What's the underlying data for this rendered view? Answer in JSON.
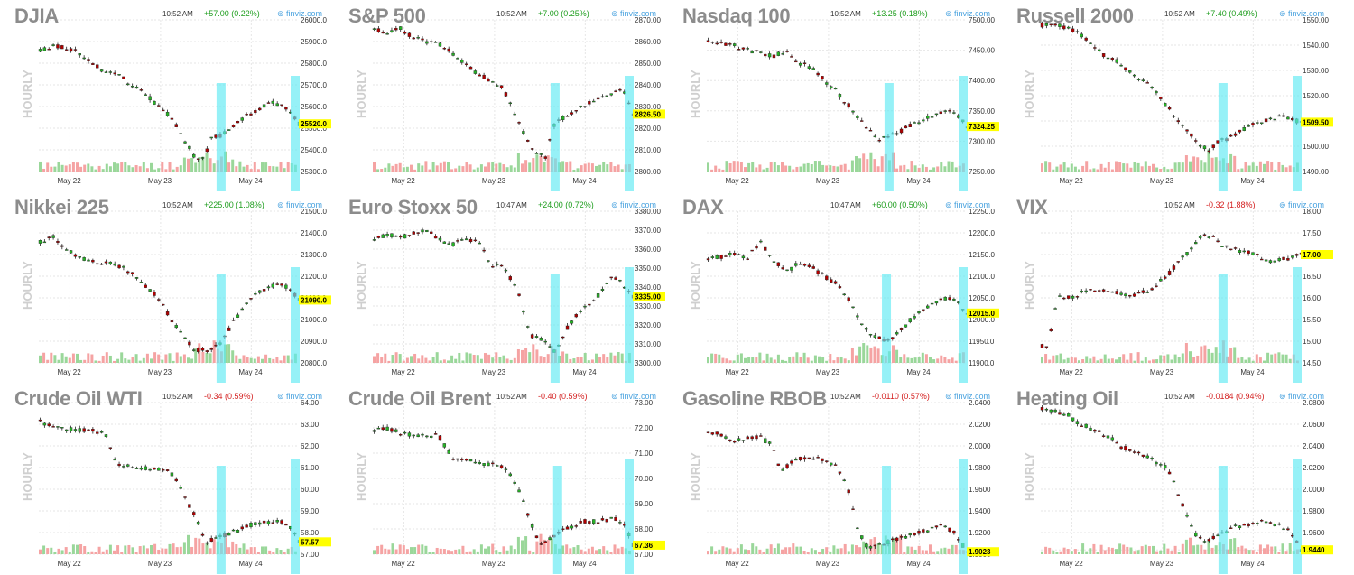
{
  "colors": {
    "up": "#26b226",
    "down": "#b00000",
    "vol_up": "#9ad79a",
    "vol_down": "#f5a3a3",
    "highlight": "#5ee9f2",
    "last_label": "#ffff00",
    "grid": "#e6e6e6",
    "pos": "#1f9e1f",
    "neg": "#d42020"
  },
  "common": {
    "hourly_label": "HOURLY",
    "brand": "⊚ finviz.com",
    "x_labels": [
      "May 22",
      "May 23",
      "May 24"
    ]
  },
  "chart_data": [
    {
      "type": "line",
      "title": "DJIA",
      "time": "10:52 AM",
      "change": "+57.00 (0.22%)",
      "change_sign": "pos",
      "ylim": [
        25300,
        26000
      ],
      "yticks": [
        "25300.0",
        "25400.0",
        "25500.0",
        "25600.0",
        "25700.0",
        "25800.0",
        "25900.0",
        "26000.0"
      ],
      "last": "25520.0",
      "path": [
        [
          0,
          25860
        ],
        [
          0.05,
          25880
        ],
        [
          0.1,
          25870
        ],
        [
          0.15,
          25850
        ],
        [
          0.2,
          25800
        ],
        [
          0.25,
          25760
        ],
        [
          0.3,
          25750
        ],
        [
          0.35,
          25700
        ],
        [
          0.4,
          25660
        ],
        [
          0.45,
          25610
        ],
        [
          0.5,
          25560
        ],
        [
          0.55,
          25460
        ],
        [
          0.6,
          25360
        ],
        [
          0.63,
          25360
        ],
        [
          0.66,
          25450
        ],
        [
          0.7,
          25470
        ],
        [
          0.75,
          25510
        ],
        [
          0.8,
          25560
        ],
        [
          0.86,
          25600
        ],
        [
          0.9,
          25620
        ],
        [
          0.94,
          25600
        ],
        [
          1,
          25520
        ]
      ]
    },
    {
      "type": "line",
      "title": "S&P 500",
      "time": "10:52 AM",
      "change": "+7.00 (0.25%)",
      "change_sign": "pos",
      "ylim": [
        2800,
        2870
      ],
      "yticks": [
        "2800.00",
        "2810.00",
        "2820.00",
        "2830.00",
        "2840.00",
        "2850.00",
        "2860.00",
        "2870.00"
      ],
      "last": "2826.50",
      "path": [
        [
          0,
          2866
        ],
        [
          0.05,
          2864
        ],
        [
          0.1,
          2866
        ],
        [
          0.15,
          2862
        ],
        [
          0.2,
          2860
        ],
        [
          0.25,
          2859
        ],
        [
          0.3,
          2855
        ],
        [
          0.35,
          2850
        ],
        [
          0.4,
          2845
        ],
        [
          0.45,
          2842
        ],
        [
          0.5,
          2838
        ],
        [
          0.55,
          2825
        ],
        [
          0.6,
          2812
        ],
        [
          0.66,
          2806
        ],
        [
          0.7,
          2824
        ],
        [
          0.75,
          2825
        ],
        [
          0.8,
          2830
        ],
        [
          0.86,
          2833
        ],
        [
          0.92,
          2836
        ],
        [
          0.96,
          2838
        ],
        [
          1,
          2826.5
        ]
      ]
    },
    {
      "type": "line",
      "title": "Nasdaq 100",
      "time": "10:52 AM",
      "change": "+13.25 (0.18%)",
      "change_sign": "pos",
      "ylim": [
        7250,
        7500
      ],
      "yticks": [
        "7250.00",
        "7300.00",
        "7350.00",
        "7400.00",
        "7450.00",
        "7500.00"
      ],
      "last": "7324.25",
      "path": [
        [
          0,
          7465
        ],
        [
          0.05,
          7460
        ],
        [
          0.1,
          7458
        ],
        [
          0.15,
          7450
        ],
        [
          0.2,
          7445
        ],
        [
          0.25,
          7440
        ],
        [
          0.3,
          7450
        ],
        [
          0.35,
          7430
        ],
        [
          0.4,
          7420
        ],
        [
          0.45,
          7400
        ],
        [
          0.5,
          7380
        ],
        [
          0.55,
          7355
        ],
        [
          0.6,
          7330
        ],
        [
          0.66,
          7300
        ],
        [
          0.7,
          7310
        ],
        [
          0.75,
          7318
        ],
        [
          0.8,
          7330
        ],
        [
          0.86,
          7340
        ],
        [
          0.92,
          7350
        ],
        [
          0.96,
          7345
        ],
        [
          1,
          7324.25
        ]
      ]
    },
    {
      "type": "line",
      "title": "Russell 2000",
      "time": "10:52 AM",
      "change": "+7.40 (0.49%)",
      "change_sign": "pos",
      "ylim": [
        1490,
        1550
      ],
      "yticks": [
        "1490.00",
        "1500.00",
        "1510.00",
        "1520.00",
        "1530.00",
        "1540.00",
        "1550.00"
      ],
      "last": "1509.50",
      "path": [
        [
          0,
          1548
        ],
        [
          0.06,
          1548
        ],
        [
          0.12,
          1546
        ],
        [
          0.18,
          1542
        ],
        [
          0.24,
          1536
        ],
        [
          0.3,
          1533
        ],
        [
          0.36,
          1528
        ],
        [
          0.42,
          1524
        ],
        [
          0.48,
          1516
        ],
        [
          0.54,
          1508
        ],
        [
          0.6,
          1502
        ],
        [
          0.64,
          1498
        ],
        [
          0.68,
          1502
        ],
        [
          0.74,
          1504
        ],
        [
          0.8,
          1508
        ],
        [
          0.86,
          1510
        ],
        [
          0.92,
          1512
        ],
        [
          1,
          1509.5
        ]
      ]
    },
    {
      "type": "line",
      "title": "Nikkei 225",
      "time": "10:52 AM",
      "change": "+225.00 (1.08%)",
      "change_sign": "pos",
      "ylim": [
        20800,
        21500
      ],
      "yticks": [
        "20800.0",
        "20900.0",
        "21000.0",
        "21100.0",
        "21200.0",
        "21300.0",
        "21400.0",
        "21500.0"
      ],
      "last": "21090.0",
      "path": [
        [
          0,
          21360
        ],
        [
          0.05,
          21380
        ],
        [
          0.1,
          21320
        ],
        [
          0.15,
          21290
        ],
        [
          0.2,
          21270
        ],
        [
          0.25,
          21260
        ],
        [
          0.3,
          21250
        ],
        [
          0.35,
          21220
        ],
        [
          0.4,
          21160
        ],
        [
          0.45,
          21110
        ],
        [
          0.5,
          21010
        ],
        [
          0.55,
          20930
        ],
        [
          0.6,
          20860
        ],
        [
          0.66,
          20860
        ],
        [
          0.7,
          20900
        ],
        [
          0.75,
          21000
        ],
        [
          0.8,
          21080
        ],
        [
          0.86,
          21140
        ],
        [
          0.92,
          21160
        ],
        [
          0.96,
          21150
        ],
        [
          1,
          21090
        ]
      ]
    },
    {
      "type": "line",
      "title": "Euro Stoxx 50",
      "time": "10:47 AM",
      "change": "+24.00 (0.72%)",
      "change_sign": "pos",
      "ylim": [
        3300,
        3380
      ],
      "yticks": [
        "3300.00",
        "3310.00",
        "3320.00",
        "3330.00",
        "3340.00",
        "3350.00",
        "3360.00",
        "3370.00",
        "3380.00"
      ],
      "last": "3335.00",
      "path": [
        [
          0,
          3365
        ],
        [
          0.05,
          3368
        ],
        [
          0.1,
          3366
        ],
        [
          0.15,
          3368
        ],
        [
          0.2,
          3370
        ],
        [
          0.25,
          3365
        ],
        [
          0.3,
          3362
        ],
        [
          0.35,
          3366
        ],
        [
          0.4,
          3364
        ],
        [
          0.45,
          3352
        ],
        [
          0.5,
          3350
        ],
        [
          0.55,
          3340
        ],
        [
          0.6,
          3315
        ],
        [
          0.65,
          3312
        ],
        [
          0.7,
          3305
        ],
        [
          0.75,
          3320
        ],
        [
          0.8,
          3328
        ],
        [
          0.86,
          3335
        ],
        [
          0.92,
          3345
        ],
        [
          0.96,
          3342
        ],
        [
          1,
          3335
        ]
      ]
    },
    {
      "type": "line",
      "title": "DAX",
      "time": "10:47 AM",
      "change": "+60.00 (0.50%)",
      "change_sign": "pos",
      "ylim": [
        11900,
        12250
      ],
      "yticks": [
        "11900.0",
        "11950.0",
        "12000.0",
        "12050.0",
        "12100.0",
        "12150.0",
        "12200.0",
        "12250.0"
      ],
      "last": "12015.0",
      "path": [
        [
          0,
          12140
        ],
        [
          0.05,
          12145
        ],
        [
          0.1,
          12150
        ],
        [
          0.15,
          12140
        ],
        [
          0.2,
          12180
        ],
        [
          0.25,
          12140
        ],
        [
          0.3,
          12110
        ],
        [
          0.35,
          12130
        ],
        [
          0.4,
          12120
        ],
        [
          0.45,
          12100
        ],
        [
          0.5,
          12080
        ],
        [
          0.55,
          12040
        ],
        [
          0.6,
          11980
        ],
        [
          0.65,
          11960
        ],
        [
          0.7,
          11950
        ],
        [
          0.75,
          11980
        ],
        [
          0.8,
          12010
        ],
        [
          0.86,
          12035
        ],
        [
          0.92,
          12050
        ],
        [
          0.96,
          12040
        ],
        [
          1,
          12015
        ]
      ]
    },
    {
      "type": "line",
      "title": "VIX",
      "time": "10:52 AM",
      "change": "-0.32 (1.88%)",
      "change_sign": "neg",
      "ylim": [
        14.5,
        18
      ],
      "yticks": [
        "14.50",
        "15.00",
        "15.50",
        "16.00",
        "16.50",
        "17.00",
        "17.50",
        "18.00"
      ],
      "last": "17.00",
      "path": [
        [
          0,
          14.9
        ],
        [
          0.02,
          14.9
        ],
        [
          0.06,
          16.0
        ],
        [
          0.12,
          16.0
        ],
        [
          0.18,
          16.2
        ],
        [
          0.24,
          16.15
        ],
        [
          0.3,
          16.1
        ],
        [
          0.36,
          16.05
        ],
        [
          0.42,
          16.2
        ],
        [
          0.48,
          16.5
        ],
        [
          0.54,
          16.9
        ],
        [
          0.58,
          17.2
        ],
        [
          0.62,
          17.45
        ],
        [
          0.66,
          17.4
        ],
        [
          0.7,
          17.2
        ],
        [
          0.76,
          17.1
        ],
        [
          0.82,
          17.0
        ],
        [
          0.88,
          16.85
        ],
        [
          0.94,
          16.9
        ],
        [
          1,
          17.0
        ]
      ]
    },
    {
      "type": "line",
      "title": "Crude Oil WTI",
      "time": "10:52 AM",
      "change": "-0.34 (0.59%)",
      "change_sign": "neg",
      "ylim": [
        57,
        64
      ],
      "yticks": [
        "57.00",
        "58.00",
        "59.00",
        "60.00",
        "61.00",
        "62.00",
        "63.00",
        "64.00"
      ],
      "last": "57.57",
      "path": [
        [
          0,
          63.1
        ],
        [
          0.05,
          62.95
        ],
        [
          0.1,
          62.8
        ],
        [
          0.15,
          62.75
        ],
        [
          0.2,
          62.7
        ],
        [
          0.25,
          62.6
        ],
        [
          0.3,
          61.1
        ],
        [
          0.36,
          61.05
        ],
        [
          0.42,
          60.95
        ],
        [
          0.48,
          60.9
        ],
        [
          0.52,
          60.6
        ],
        [
          0.56,
          59.6
        ],
        [
          0.6,
          58.7
        ],
        [
          0.64,
          57.6
        ],
        [
          0.68,
          57.75
        ],
        [
          0.74,
          58.0
        ],
        [
          0.8,
          58.3
        ],
        [
          0.86,
          58.5
        ],
        [
          0.92,
          58.5
        ],
        [
          0.96,
          58.4
        ],
        [
          1,
          57.57
        ]
      ]
    },
    {
      "type": "line",
      "title": "Crude Oil Brent",
      "time": "10:52 AM",
      "change": "-0.40 (0.59%)",
      "change_sign": "neg",
      "ylim": [
        67,
        73
      ],
      "yticks": [
        "67.00",
        "68.00",
        "69.00",
        "70.00",
        "71.00",
        "72.00",
        "73.00"
      ],
      "last": "67.36",
      "path": [
        [
          0,
          71.9
        ],
        [
          0.05,
          72.0
        ],
        [
          0.1,
          71.8
        ],
        [
          0.15,
          71.7
        ],
        [
          0.2,
          71.65
        ],
        [
          0.25,
          71.7
        ],
        [
          0.3,
          70.8
        ],
        [
          0.36,
          70.75
        ],
        [
          0.42,
          70.6
        ],
        [
          0.48,
          70.5
        ],
        [
          0.52,
          70.3
        ],
        [
          0.56,
          69.5
        ],
        [
          0.6,
          68.4
        ],
        [
          0.64,
          67.3
        ],
        [
          0.68,
          67.6
        ],
        [
          0.74,
          68.0
        ],
        [
          0.8,
          68.3
        ],
        [
          0.86,
          68.3
        ],
        [
          0.92,
          68.4
        ],
        [
          0.96,
          68.3
        ],
        [
          1,
          67.36
        ]
      ]
    },
    {
      "type": "line",
      "title": "Gasoline RBOB",
      "time": "10:52 AM",
      "change": "-0.0110 (0.57%)",
      "change_sign": "neg",
      "ylim": [
        1.9,
        2.04
      ],
      "yticks": [
        "1.9000",
        "1.9200",
        "1.9400",
        "1.9600",
        "1.9800",
        "2.0000",
        "2.0200",
        "2.0400"
      ],
      "last": "1.9023",
      "path": [
        [
          0,
          2.013
        ],
        [
          0.05,
          2.01
        ],
        [
          0.1,
          2.005
        ],
        [
          0.15,
          2.007
        ],
        [
          0.2,
          2.008
        ],
        [
          0.25,
          2.0
        ],
        [
          0.28,
          1.975
        ],
        [
          0.32,
          1.985
        ],
        [
          0.38,
          1.99
        ],
        [
          0.44,
          1.988
        ],
        [
          0.5,
          1.98
        ],
        [
          0.54,
          1.96
        ],
        [
          0.58,
          1.92
        ],
        [
          0.62,
          1.905
        ],
        [
          0.66,
          1.908
        ],
        [
          0.72,
          1.913
        ],
        [
          0.78,
          1.918
        ],
        [
          0.84,
          1.922
        ],
        [
          0.9,
          1.926
        ],
        [
          0.95,
          1.92
        ],
        [
          1,
          1.9023
        ]
      ]
    },
    {
      "type": "line",
      "title": "Heating Oil",
      "time": "10:52 AM",
      "change": "-0.0184 (0.94%)",
      "change_sign": "neg",
      "ylim": [
        1.94,
        2.08
      ],
      "yticks": [
        "1.9440",
        "1.9600",
        "1.9800",
        "2.0000",
        "2.0200",
        "2.0400",
        "2.0600",
        "2.0800"
      ],
      "last": "1.9440",
      "path": [
        [
          0,
          2.075
        ],
        [
          0.05,
          2.072
        ],
        [
          0.1,
          2.068
        ],
        [
          0.15,
          2.06
        ],
        [
          0.2,
          2.055
        ],
        [
          0.25,
          2.05
        ],
        [
          0.3,
          2.04
        ],
        [
          0.36,
          2.035
        ],
        [
          0.42,
          2.028
        ],
        [
          0.48,
          2.02
        ],
        [
          0.52,
          2.0
        ],
        [
          0.56,
          1.975
        ],
        [
          0.6,
          1.955
        ],
        [
          0.64,
          1.952
        ],
        [
          0.68,
          1.958
        ],
        [
          0.74,
          1.965
        ],
        [
          0.8,
          1.968
        ],
        [
          0.86,
          1.97
        ],
        [
          0.92,
          1.966
        ],
        [
          0.96,
          1.962
        ],
        [
          1,
          1.944
        ]
      ]
    }
  ]
}
